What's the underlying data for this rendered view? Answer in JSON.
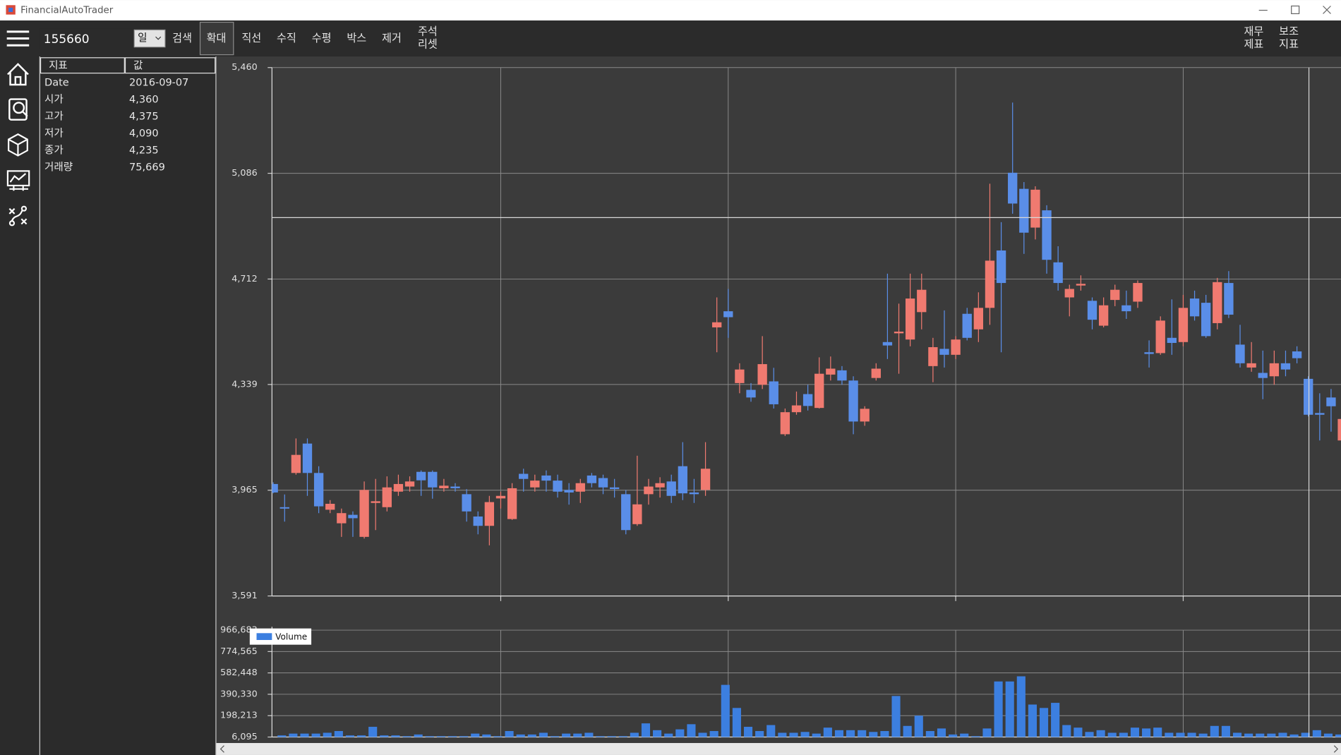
{
  "window": {
    "title": "FinancialAutoTrader"
  },
  "toolbar": {
    "code": "155660",
    "period": "일",
    "buttons": [
      "검색",
      "확대",
      "직선",
      "수직",
      "수평",
      "박스",
      "제거"
    ],
    "reset": [
      "주석",
      "리셋"
    ],
    "right": [
      [
        "재무",
        "제표"
      ],
      [
        "보조",
        "지표"
      ]
    ]
  },
  "info_table": {
    "headers": [
      "지표",
      "값"
    ],
    "rows": [
      [
        "Date",
        "2016-09-07"
      ],
      [
        "시가",
        "4,360"
      ],
      [
        "고가",
        "4,375"
      ],
      [
        "저가",
        "4,090"
      ],
      [
        "종가",
        "4,235"
      ],
      [
        "거래량",
        "75,669"
      ]
    ]
  },
  "chart_data": [
    {
      "type": "candlestick",
      "grid": true,
      "up_color": "#f07a70",
      "down_color": "#5a8ee8",
      "ylim": [
        3591,
        5460
      ],
      "yticks": [
        {
          "value": 5460,
          "label": "5,460"
        },
        {
          "value": 5086,
          "label": "5,086"
        },
        {
          "value": 4712,
          "label": "4,712"
        },
        {
          "value": 4339,
          "label": "4,339"
        },
        {
          "value": 3965,
          "label": "3,965"
        },
        {
          "value": 3591,
          "label": "3,591"
        }
      ],
      "candles": [
        [
          3987,
          3993,
          3954,
          3957
        ],
        [
          3905,
          3950,
          3854,
          3900
        ],
        [
          4026,
          4148,
          4020,
          4090
        ],
        [
          4130,
          4148,
          3945,
          4026
        ],
        [
          4026,
          4050,
          3884,
          3908
        ],
        [
          3896,
          3930,
          3884,
          3917
        ],
        [
          3848,
          3900,
          3800,
          3884
        ],
        [
          3878,
          3890,
          3800,
          3866
        ],
        [
          3800,
          3996,
          3794,
          3966
        ],
        [
          3920,
          4005,
          3824,
          3926
        ],
        [
          3905,
          4014,
          3890,
          3975
        ],
        [
          3960,
          4020,
          3945,
          3987
        ],
        [
          3978,
          4014,
          3960,
          3996
        ],
        [
          4030,
          4035,
          3945,
          4000
        ],
        [
          4030,
          4035,
          3935,
          3975
        ],
        [
          3972,
          4005,
          3960,
          3981
        ],
        [
          3978,
          3990,
          3960,
          3972
        ],
        [
          3951,
          3969,
          3854,
          3890
        ],
        [
          3872,
          3890,
          3809,
          3839
        ],
        [
          3839,
          3945,
          3770,
          3923
        ],
        [
          3936,
          3960,
          3900,
          3945
        ],
        [
          3863,
          3990,
          3860,
          3972
        ],
        [
          4023,
          4041,
          3960,
          4005
        ],
        [
          3975,
          4020,
          3960,
          3999
        ],
        [
          4017,
          4035,
          3960,
          3999
        ],
        [
          3999,
          4020,
          3939,
          3960
        ],
        [
          3966,
          3990,
          3914,
          3957
        ],
        [
          3960,
          4005,
          3920,
          3990
        ],
        [
          4017,
          4026,
          3975,
          3990
        ],
        [
          4008,
          4020,
          3951,
          3975
        ],
        [
          3975,
          4005,
          3939,
          3969
        ],
        [
          3951,
          3966,
          3809,
          3824
        ],
        [
          3845,
          4087,
          3839,
          3915
        ],
        [
          3951,
          4005,
          3914,
          3978
        ],
        [
          3975,
          4011,
          3939,
          3990
        ],
        [
          3996,
          4020,
          3920,
          3945
        ],
        [
          4050,
          4135,
          3930,
          3954
        ],
        [
          3957,
          4005,
          3920,
          3951
        ],
        [
          3966,
          4135,
          3945,
          4041
        ],
        [
          4541,
          4647,
          4453,
          4559
        ],
        [
          4598,
          4677,
          4504,
          4577
        ],
        [
          4344,
          4414,
          4308,
          4392
        ],
        [
          4320,
          4344,
          4278,
          4293
        ],
        [
          4338,
          4510,
          4323,
          4411
        ],
        [
          4350,
          4398,
          4254,
          4269
        ],
        [
          4163,
          4254,
          4157,
          4241
        ],
        [
          4241,
          4314,
          4232,
          4265
        ],
        [
          4305,
          4338,
          4247,
          4263
        ],
        [
          4256,
          4435,
          4254,
          4377
        ],
        [
          4374,
          4438,
          4353,
          4395
        ],
        [
          4389,
          4404,
          4338,
          4353
        ],
        [
          4353,
          4368,
          4163,
          4208
        ],
        [
          4208,
          4262,
          4193,
          4253
        ],
        [
          4362,
          4414,
          4353,
          4395
        ],
        [
          4489,
          4731,
          4429,
          4477
        ],
        [
          4520,
          4625,
          4377,
          4526
        ],
        [
          4498,
          4731,
          4474,
          4643
        ],
        [
          4595,
          4731,
          4534,
          4674
        ],
        [
          4404,
          4504,
          4347,
          4471
        ],
        [
          4465,
          4601,
          4399,
          4444
        ],
        [
          4444,
          4510,
          4429,
          4498
        ],
        [
          4589,
          4610,
          4495,
          4504
        ],
        [
          4534,
          4665,
          4489,
          4610
        ],
        [
          4610,
          5049,
          4550,
          4777
        ],
        [
          4813,
          4913,
          4453,
          4698
        ],
        [
          5088,
          5336,
          4943,
          4979
        ],
        [
          5031,
          5055,
          4801,
          4876
        ],
        [
          4894,
          5040,
          4852,
          5028
        ],
        [
          4955,
          4973,
          4731,
          4780
        ],
        [
          4771,
          4828,
          4671,
          4698
        ],
        [
          4647,
          4692,
          4580,
          4677
        ],
        [
          4689,
          4725,
          4671,
          4695
        ],
        [
          4635,
          4647,
          4534,
          4568
        ],
        [
          4547,
          4647,
          4541,
          4619
        ],
        [
          4638,
          4692,
          4616,
          4674
        ],
        [
          4619,
          4671,
          4571,
          4598
        ],
        [
          4632,
          4707,
          4610,
          4698
        ],
        [
          4453,
          4495,
          4399,
          4447
        ],
        [
          4450,
          4580,
          4444,
          4565
        ],
        [
          4504,
          4640,
          4444,
          4486
        ],
        [
          4489,
          4656,
          4474,
          4610
        ],
        [
          4643,
          4671,
          4565,
          4580
        ],
        [
          4628,
          4656,
          4504,
          4510
        ],
        [
          4556,
          4716,
          4534,
          4701
        ],
        [
          4698,
          4740,
          4574,
          4586
        ],
        [
          4480,
          4550,
          4399,
          4414
        ],
        [
          4399,
          4489,
          4384,
          4414
        ],
        [
          4380,
          4459,
          4287,
          4362
        ],
        [
          4368,
          4459,
          4338,
          4414
        ],
        [
          4414,
          4459,
          4368,
          4392
        ],
        [
          4456,
          4474,
          4414,
          4432
        ],
        [
          4359,
          4368,
          4226,
          4232
        ],
        [
          4238,
          4308,
          4141,
          4232
        ],
        [
          4293,
          4323,
          4172,
          4262
        ],
        [
          4141,
          4232,
          4130,
          4217
        ]
      ]
    },
    {
      "type": "bar",
      "name": "Volume",
      "color": "#3c7fe0",
      "legend": "top-left",
      "grid": true,
      "ylim": [
        6095,
        966683
      ],
      "yticks": [
        {
          "value": 966683,
          "label": "966,683"
        },
        {
          "value": 774565,
          "label": "774,565"
        },
        {
          "value": 582448,
          "label": "582,448"
        },
        {
          "value": 390330,
          "label": "390,330"
        },
        {
          "value": 198213,
          "label": "198,213"
        },
        {
          "value": 6095,
          "label": "6,095"
        }
      ],
      "values": [
        21000,
        37000,
        37000,
        37000,
        44500,
        60000,
        21000,
        21000,
        98000,
        21000,
        21000,
        14000,
        29000,
        14000,
        14000,
        14000,
        14000,
        37000,
        29000,
        14000,
        60000,
        29000,
        29000,
        44500,
        14000,
        37000,
        37000,
        44500,
        14000,
        14000,
        14000,
        44500,
        129000,
        67600,
        37000,
        75300,
        121400,
        44500,
        60000,
        475000,
        267400,
        98000,
        60000,
        113700,
        44500,
        44500,
        52000,
        37000,
        90600,
        67600,
        67600,
        67600,
        52000,
        60000,
        375000,
        106000,
        198200,
        60000,
        83000,
        29000,
        37000,
        14000,
        83000,
        505600,
        505600,
        551700,
        298100,
        267400,
        313500,
        113700,
        90600,
        52000,
        67600,
        44500,
        44500,
        90600,
        83000,
        90600,
        44500,
        44500,
        44500,
        37000,
        106000,
        106000,
        44500,
        37000,
        37000,
        37000,
        44500,
        29000,
        44500,
        67600,
        37000,
        29000,
        21000
      ]
    }
  ]
}
